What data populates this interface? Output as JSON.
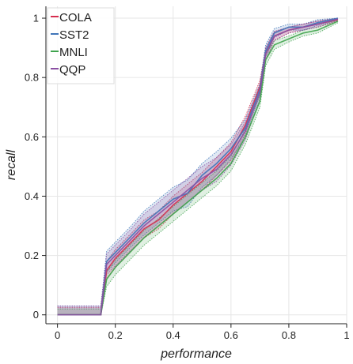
{
  "chart_data": {
    "type": "line",
    "title": "",
    "xlabel": "performance",
    "ylabel": "recall",
    "xlim": [
      -0.04,
      1.0
    ],
    "ylim": [
      -0.03,
      1.04
    ],
    "x_ticks": [
      0,
      0.2,
      0.4,
      0.6,
      0.8,
      1
    ],
    "x_tick_labels": [
      "0",
      "0.2",
      "0.4",
      "0.6",
      "0.8",
      "1"
    ],
    "y_ticks": [
      0,
      0.2,
      0.4,
      0.6,
      0.8,
      1
    ],
    "y_tick_labels": [
      "0",
      "0.2",
      "0.4",
      "0.6",
      "0.8",
      "1"
    ],
    "grid": true,
    "legend_position": "top-left",
    "x": [
      0.0,
      0.15,
      0.17,
      0.2,
      0.25,
      0.3,
      0.35,
      0.4,
      0.45,
      0.5,
      0.55,
      0.6,
      0.65,
      0.7,
      0.72,
      0.75,
      0.8,
      0.85,
      0.9,
      0.97
    ],
    "series": [
      {
        "name": "COLA",
        "color": "#d62d4f",
        "values": [
          0.0,
          0.0,
          0.15,
          0.19,
          0.24,
          0.29,
          0.32,
          0.37,
          0.41,
          0.45,
          0.5,
          0.55,
          0.64,
          0.77,
          0.88,
          0.94,
          0.96,
          0.97,
          0.98,
          0.995
        ],
        "band": [
          0.025,
          0.025,
          0.03,
          0.03,
          0.03,
          0.03,
          0.03,
          0.03,
          0.03,
          0.03,
          0.03,
          0.03,
          0.03,
          0.02,
          0.02,
          0.015,
          0.01,
          0.01,
          0.01,
          0.005
        ]
      },
      {
        "name": "SST2",
        "color": "#3f74b8",
        "values": [
          0.0,
          0.0,
          0.18,
          0.21,
          0.26,
          0.31,
          0.35,
          0.39,
          0.41,
          0.47,
          0.51,
          0.56,
          0.63,
          0.76,
          0.89,
          0.95,
          0.97,
          0.97,
          0.985,
          1.0
        ],
        "band": [
          0.03,
          0.03,
          0.035,
          0.035,
          0.035,
          0.04,
          0.04,
          0.04,
          0.045,
          0.04,
          0.04,
          0.035,
          0.03,
          0.02,
          0.02,
          0.015,
          0.01,
          0.01,
          0.01,
          0.005
        ]
      },
      {
        "name": "MNLI",
        "color": "#3fa34d",
        "values": [
          0.0,
          0.0,
          0.12,
          0.16,
          0.21,
          0.26,
          0.3,
          0.34,
          0.38,
          0.42,
          0.46,
          0.51,
          0.6,
          0.72,
          0.86,
          0.91,
          0.93,
          0.95,
          0.96,
          0.99
        ],
        "band": [
          0.02,
          0.02,
          0.025,
          0.025,
          0.025,
          0.025,
          0.025,
          0.025,
          0.025,
          0.025,
          0.025,
          0.025,
          0.025,
          0.02,
          0.02,
          0.015,
          0.01,
          0.01,
          0.01,
          0.005
        ]
      },
      {
        "name": "QQP",
        "color": "#8a4fa3",
        "values": [
          0.0,
          0.0,
          0.17,
          0.2,
          0.25,
          0.3,
          0.34,
          0.38,
          0.42,
          0.46,
          0.49,
          0.54,
          0.62,
          0.75,
          0.88,
          0.94,
          0.96,
          0.97,
          0.98,
          0.997
        ],
        "band": [
          0.03,
          0.03,
          0.035,
          0.035,
          0.035,
          0.04,
          0.04,
          0.04,
          0.04,
          0.04,
          0.04,
          0.035,
          0.03,
          0.02,
          0.02,
          0.015,
          0.01,
          0.01,
          0.01,
          0.005
        ]
      }
    ]
  }
}
